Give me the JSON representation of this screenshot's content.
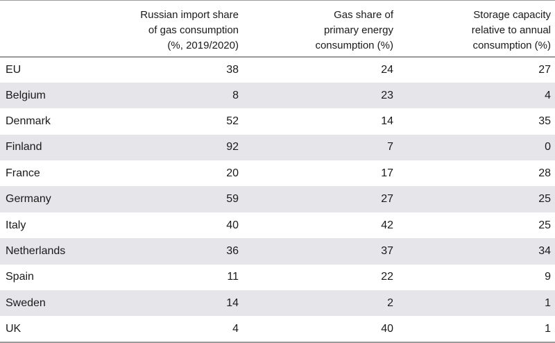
{
  "chart_data": {
    "type": "table",
    "columns": [
      "",
      "Russian import share\nof gas consumption\n(%, 2019/2020)",
      "Gas share of\nprimary energy\nconsumption (%)",
      "Storage capacity\nrelative to annual\nconsumption (%)"
    ],
    "header_lines": [
      [],
      [
        "Russian import share",
        "of gas consumption",
        "(%, 2019/2020)"
      ],
      [
        "Gas share of",
        "primary energy",
        "consumption (%)"
      ],
      [
        "Storage capacity",
        "relative to annual",
        "consumption (%)"
      ]
    ],
    "rows": [
      [
        "EU",
        "38",
        "24",
        "27"
      ],
      [
        "Belgium",
        "8",
        "23",
        "4"
      ],
      [
        "Denmark",
        "52",
        "14",
        "35"
      ],
      [
        "Finland",
        "92",
        "7",
        "0"
      ],
      [
        "France",
        "20",
        "17",
        "28"
      ],
      [
        "Germany",
        "59",
        "27",
        "25"
      ],
      [
        "Italy",
        "40",
        "42",
        "25"
      ],
      [
        "Netherlands",
        "36",
        "37",
        "34"
      ],
      [
        "Spain",
        "11",
        "22",
        "9"
      ],
      [
        "Sweden",
        "14",
        "2",
        "1"
      ],
      [
        "UK",
        "4",
        "40",
        "1"
      ]
    ]
  }
}
